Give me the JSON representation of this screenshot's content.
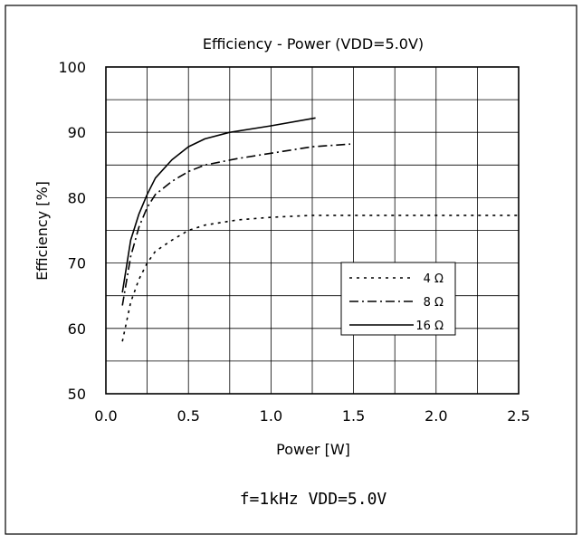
{
  "chart_data": {
    "type": "line",
    "title": "Efficiency  -  Power  (VDD=5.0V)",
    "xlabel": "Power  [W]",
    "ylabel": "Efficiency [%]",
    "xlim": [
      0.0,
      2.5
    ],
    "ylim": [
      50,
      100
    ],
    "xticks": [
      "0.0",
      "0.5",
      "1.0",
      "1.5",
      "2.0",
      "2.5"
    ],
    "yticks": [
      "50",
      "60",
      "70",
      "80",
      "90",
      "100"
    ],
    "grid": true,
    "legend_position": "lower-right",
    "series": [
      {
        "name": "4 Ω",
        "style": "dotted",
        "x": [
          0.1,
          0.15,
          0.2,
          0.25,
          0.3,
          0.4,
          0.5,
          0.6,
          0.8,
          1.0,
          1.25,
          1.5,
          2.0,
          2.5
        ],
        "y": [
          58.0,
          64.0,
          67.5,
          70.0,
          71.8,
          73.5,
          75.0,
          75.8,
          76.6,
          77.0,
          77.3,
          77.3,
          77.3,
          77.3
        ]
      },
      {
        "name": "8 Ω",
        "style": "dash-dot",
        "x": [
          0.1,
          0.15,
          0.2,
          0.25,
          0.3,
          0.4,
          0.5,
          0.6,
          0.8,
          1.0,
          1.25,
          1.48
        ],
        "y": [
          63.5,
          71.0,
          75.5,
          78.5,
          80.5,
          82.5,
          84.0,
          85.0,
          86.0,
          86.8,
          87.8,
          88.2
        ]
      },
      {
        "name": "16 Ω",
        "style": "solid",
        "x": [
          0.1,
          0.15,
          0.2,
          0.25,
          0.3,
          0.4,
          0.5,
          0.6,
          0.75,
          1.0,
          1.27
        ],
        "y": [
          65.5,
          73.5,
          77.5,
          80.5,
          83.0,
          85.8,
          87.8,
          89.0,
          90.0,
          91.0,
          92.2
        ]
      }
    ]
  },
  "note": "f=1kHz   VDD=5.0V"
}
